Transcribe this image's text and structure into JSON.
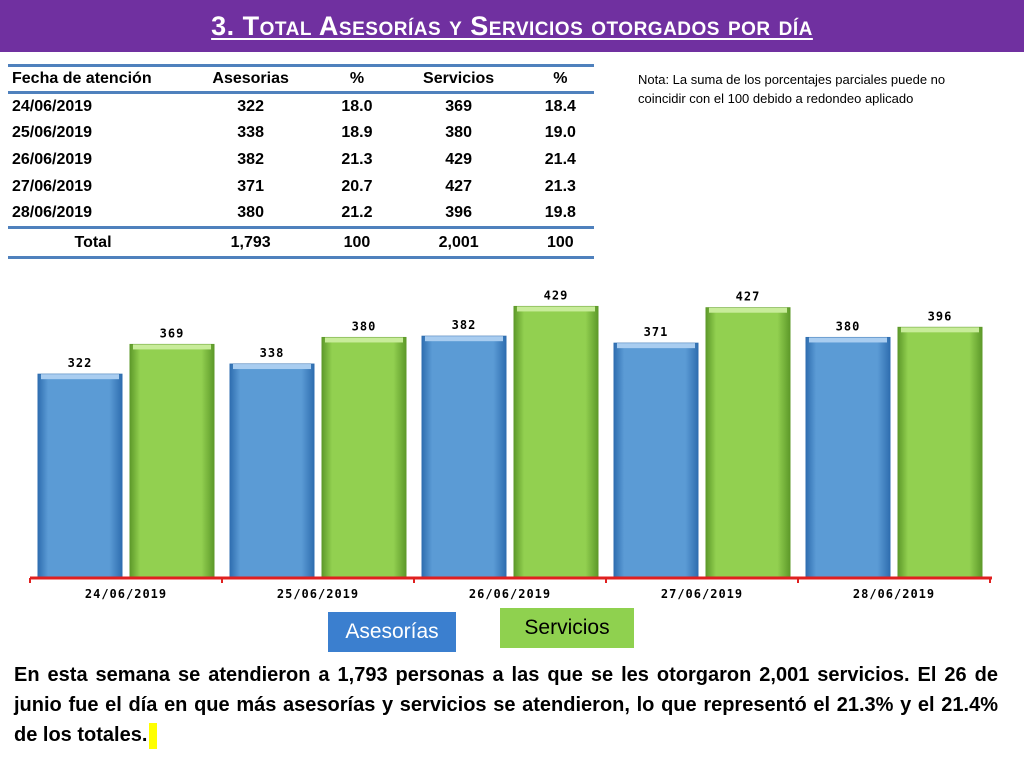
{
  "header": {
    "title": "3.  Total Asesorías y Servicios otorgados por día"
  },
  "table": {
    "columns": [
      "Fecha de atención",
      "Asesorias",
      "%",
      "Servicios",
      "%"
    ],
    "rows": [
      [
        "24/06/2019",
        "322",
        "18.0",
        "369",
        "18.4"
      ],
      [
        "25/06/2019",
        "338",
        "18.9",
        "380",
        "19.0"
      ],
      [
        "26/06/2019",
        "382",
        "21.3",
        "429",
        "21.4"
      ],
      [
        "27/06/2019",
        "371",
        "20.7",
        "427",
        "21.3"
      ],
      [
        "28/06/2019",
        "380",
        "21.2",
        "396",
        "19.8"
      ]
    ],
    "total": [
      "Total",
      "1,793",
      "100",
      "2,001",
      "100"
    ]
  },
  "note": "Nota: La suma de los porcentajes parciales puede no coincidir con el 100 debido a redondeo aplicado",
  "legend": {
    "asesorias": "Asesorías",
    "servicios": "Servicios"
  },
  "summary": "En esta semana se atendieron a 1,793 personas a las que se les otorgaron 2,001 servicios. El 26 de junio fue el día en que más asesorías y servicios se atendieron, lo que representó  el 21.3% y el 21.4% de los totales.",
  "colors": {
    "title_bg": "#7030a0",
    "asesorias": "#5b9bd5",
    "servicios": "#92d050",
    "baseline": "#e02020"
  },
  "chart_data": {
    "type": "bar",
    "categories": [
      "24/06/2019",
      "25/06/2019",
      "26/06/2019",
      "27/06/2019",
      "28/06/2019"
    ],
    "series": [
      {
        "name": "Asesorías",
        "values": [
          322,
          338,
          382,
          371,
          380
        ]
      },
      {
        "name": "Servicios",
        "values": [
          369,
          380,
          429,
          427,
          396
        ]
      }
    ],
    "ylim": [
      0,
      450
    ],
    "grid": false,
    "legend_position": "bottom"
  }
}
